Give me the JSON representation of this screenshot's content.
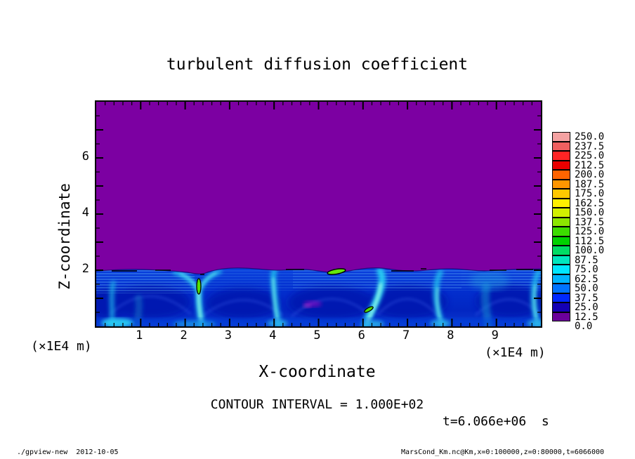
{
  "title": "turbulent diffusion coefficient",
  "axes": {
    "x_label": "X-coordinate",
    "y_label": "Z-coordinate",
    "x_unit_label": "(×1E4 m)",
    "y_unit_label": "(×1E4 m)"
  },
  "contour_note": "CONTOUR INTERVAL = 1.000E+02",
  "time_label": "t=6.066e+06  s",
  "footer_left": "./gpview-new  2012-10-05",
  "footer_right": "MarsCond_Km.nc@Km,x=0:100000,z=0:80000,t=6066000",
  "colorbar": {
    "labels": [
      "250.0",
      "237.5",
      "225.0",
      "212.5",
      "200.0",
      "187.5",
      "175.0",
      "162.5",
      "150.0",
      "137.5",
      "125.0",
      "112.5",
      "100.0",
      "87.5",
      "75.0",
      "62.5",
      "50.0",
      "37.5",
      "25.0",
      "12.5",
      "0.0"
    ],
    "colors": [
      "#f4a2a2",
      "#f06060",
      "#ff2424",
      "#e90000",
      "#ff6400",
      "#ff9600",
      "#ffc800",
      "#fff000",
      "#d2f000",
      "#8ce600",
      "#3cdc00",
      "#00d200",
      "#00dc64",
      "#00e6be",
      "#00e6ff",
      "#00b4ff",
      "#0073ff",
      "#0028ff",
      "#1400b4",
      "#6b009b"
    ]
  },
  "chart_data": {
    "type": "heatmap",
    "title": "turbulent diffusion coefficient",
    "xlabel": "X-coordinate (×1E4 m)",
    "ylabel": "Z-coordinate (×1E4 m)",
    "xlim": [
      0,
      10
    ],
    "ylim": [
      0,
      8
    ],
    "x_ticks": [
      1,
      2,
      3,
      4,
      5,
      6,
      7,
      8,
      9
    ],
    "y_ticks": [
      2,
      4,
      6
    ],
    "x_minor_step": 0.2,
    "y_minor_step": 0.5,
    "grid": false,
    "legend_position": "right-colorbar",
    "colorbar_levels": [
      0.0,
      12.5,
      25.0,
      37.5,
      50.0,
      62.5,
      75.0,
      87.5,
      100.0,
      112.5,
      125.0,
      137.5,
      150.0,
      162.5,
      175.0,
      187.5,
      200.0,
      212.5,
      225.0,
      237.5,
      250.0
    ],
    "contour_interval": 100.0,
    "time_seconds": 6066000,
    "field": {
      "upper_region": {
        "z_range_1e4m": [
          2.05,
          8
        ],
        "value": 0.0,
        "color": "purple"
      },
      "boundary_layer": {
        "z_range_1e4m": [
          0,
          2.05
        ],
        "value_range": [
          12.5,
          150
        ],
        "description": "turbulent convective layer: blue background with darker vortex cores and bright cyan upwelling plumes, horizontal striations near layer top",
        "plume_x_positions_1e4m": [
          0.4,
          2.3,
          4.0,
          6.3,
          7.7,
          8.8,
          9.9
        ],
        "vortex_core_x_positions_1e4m": [
          1.2,
          3.3,
          5.3,
          7.0,
          9.3
        ]
      },
      "contour_features": [
        {
          "x_1e4m": 2.3,
          "z_1e4m": 0.9,
          "note": "small closed 100-contour around green maximum in plume"
        },
        {
          "x_1e4m": 5.4,
          "z_1e4m": 2.0,
          "note": "elongated green maximum with closed 100-contour at layer top"
        },
        {
          "x_1e4m": 6.1,
          "z_1e4m": 0.6,
          "note": "small tilted green streak with closed contour"
        },
        {
          "x_1e4m": 4.9,
          "z_1e4m": 0.85,
          "note": "faint magenta smudge inside dark vortex core"
        }
      ]
    }
  }
}
